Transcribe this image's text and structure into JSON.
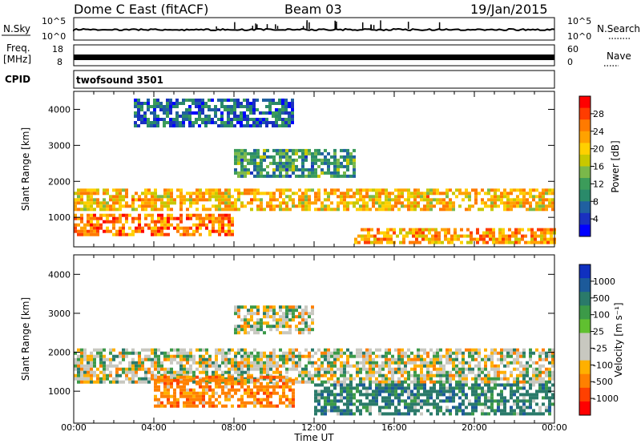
{
  "header": {
    "station": "Dome C East (fitACF)",
    "beam": "Beam 03",
    "date": "19/Jan/2015"
  },
  "top_panels": {
    "nsky_label": "N.Sky",
    "nsky_ticks": [
      "10^5",
      "10^0"
    ],
    "nsky_right_ticks": [
      "10^5",
      "10^0"
    ],
    "nsearch_label": "N.Search",
    "freq_label_1": "Freq.",
    "freq_label_2": "[MHz]",
    "freq_ticks": [
      "18",
      "8"
    ],
    "nave_ticks": [
      "60",
      "0"
    ],
    "nave_label": "Nave",
    "cpid_label": "CPID",
    "cpid_value": "twofsound 3501"
  },
  "power_colorbar": {
    "label": "Power [dB]",
    "ticks": [
      "28",
      "24",
      "20",
      "16",
      "12",
      "8",
      "4"
    ],
    "colors": [
      "#ff0000",
      "#ff3c00",
      "#ff7a00",
      "#ffa200",
      "#ffd000",
      "#c8c800",
      "#7ab84a",
      "#3c9c5a",
      "#2a8a6a",
      "#2060a0",
      "#1a30c0",
      "#0000ff"
    ]
  },
  "velocity_colorbar": {
    "label": "Velocity [m s⁻¹]",
    "ticks": [
      "1000",
      "500",
      "100",
      "25",
      "-25",
      "-100",
      "-500",
      "-1000"
    ],
    "colors": [
      "#1030c0",
      "#1c5a9a",
      "#2a7a6a",
      "#3c9a48",
      "#60c030",
      "#c8c8c0",
      "#c8c8c0",
      "#ffb000",
      "#ff8000",
      "#ff4000",
      "#ff0000"
    ]
  },
  "chart_data": [
    {
      "type": "heatmap",
      "title": "",
      "xlabel": "Time UT",
      "ylabel": "Slant Range [km]",
      "x_ticks": [
        "00:00",
        "04:00",
        "08:00",
        "12:00",
        "16:00",
        "20:00",
        "00:00"
      ],
      "y_ticks": [
        "1000",
        "2000",
        "3000",
        "4000"
      ],
      "xlim": [
        0,
        24
      ],
      "ylim": [
        180,
        4500
      ],
      "value_label": "Power [dB]",
      "value_range": [
        0,
        30
      ],
      "bands": [
        {
          "x": [
            0,
            24
          ],
          "range": [
            1200,
            1800
          ],
          "value": 20
        },
        {
          "x": [
            0,
            8
          ],
          "range": [
            500,
            1100
          ],
          "value": 24
        },
        {
          "x": [
            8,
            14
          ],
          "range": [
            2100,
            2900
          ],
          "value": 10
        },
        {
          "x": [
            14,
            24
          ],
          "range": [
            300,
            700
          ],
          "value": 22
        },
        {
          "x": [
            3,
            11
          ],
          "range": [
            3500,
            4300
          ],
          "value": 6
        }
      ]
    },
    {
      "type": "heatmap",
      "title": "",
      "xlabel": "Time UT",
      "ylabel": "Slant Range [km]",
      "x_ticks": [
        "00:00",
        "04:00",
        "08:00",
        "12:00",
        "16:00",
        "20:00",
        "00:00"
      ],
      "y_ticks": [
        "1000",
        "2000",
        "3000",
        "4000"
      ],
      "xlim": [
        0,
        24
      ],
      "ylim": [
        180,
        4500
      ],
      "value_label": "Velocity [m s⁻¹]",
      "value_range": [
        -1000,
        1000
      ],
      "bands": [
        {
          "x": [
            0,
            24
          ],
          "range": [
            1200,
            2100
          ],
          "value": 0
        },
        {
          "x": [
            12,
            24
          ],
          "range": [
            400,
            1200
          ],
          "value": 200
        },
        {
          "x": [
            4,
            11
          ],
          "range": [
            600,
            1400
          ],
          "value": -200
        },
        {
          "x": [
            8,
            12
          ],
          "range": [
            2500,
            3200
          ],
          "value": 0
        }
      ]
    }
  ]
}
